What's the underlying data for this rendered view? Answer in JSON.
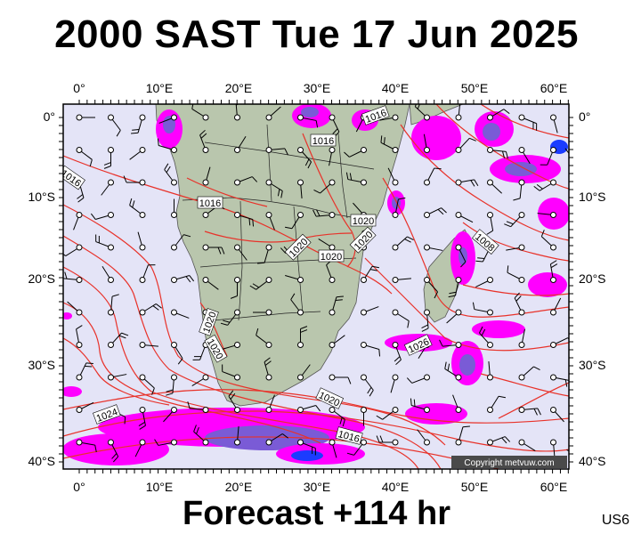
{
  "title": "2000 SAST Tue 17 Jun 2025",
  "footer": "Forecast +114 hr",
  "code": "US6",
  "credit": "Copyright metvuw.com",
  "colors": {
    "ocean": "#e4e4f7",
    "land": "#b9c6ad",
    "isobar": "#e8322a",
    "rain_magenta": "#ff00ff",
    "rain_purple": "#7a5bd6",
    "rain_blue": "#1b3cff",
    "frame": "#000000"
  },
  "axes": {
    "lon_labels": [
      "0°",
      "10°E",
      "20°E",
      "30°E",
      "40°E",
      "50°E",
      "60°E"
    ],
    "lat_labels": [
      "0°",
      "10°S",
      "20°S",
      "30°S",
      "40°S"
    ]
  },
  "isobar_labels": [
    "1016",
    "1016",
    "1016",
    "1016",
    "1020",
    "1020",
    "1020",
    "1020",
    "1020",
    "1020",
    "1020",
    "1024",
    "1016",
    "1026",
    "1008"
  ]
}
